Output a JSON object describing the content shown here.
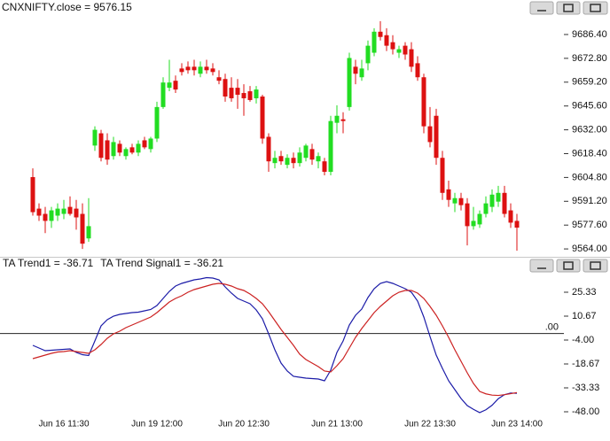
{
  "chart_data": [
    {
      "type": "candlestick",
      "title": "CNXNIFTY.close = 9576.15",
      "title_color": "#3cbf2a",
      "up_color": "#22dd22",
      "down_color": "#dd1111",
      "open": [
        9605,
        9587,
        9584,
        9580,
        9583,
        9584,
        9588,
        9587,
        9584,
        9570,
        9623,
        9630,
        9626,
        9617,
        9624,
        9617,
        9622,
        9619,
        9626,
        9621,
        9627,
        9645,
        9656,
        9660,
        9667,
        9668,
        9668,
        9664,
        9668,
        9667,
        9662,
        9661,
        9656,
        9656,
        9653,
        9654,
        9650,
        9651,
        9628,
        9613,
        9617,
        9612,
        9616,
        9613,
        9616,
        9621,
        9614,
        9614,
        9608,
        9636,
        9638,
        9645,
        9668,
        9662,
        9670,
        9676,
        9688,
        9686,
        9682,
        9676,
        9680,
        9678,
        9670,
        9662,
        9634,
        9640,
        9616,
        9598,
        9590,
        9593,
        9590,
        9577,
        9578,
        9584,
        9588,
        9591,
        9596,
        9586,
        9580
      ],
      "high": [
        9610,
        9590,
        9588,
        9588,
        9590,
        9592,
        9594,
        9592,
        9590,
        9593,
        9634,
        9632,
        9630,
        9628,
        9626,
        9622,
        9624,
        9626,
        9628,
        9628,
        9648,
        9662,
        9672,
        9663,
        9670,
        9671,
        9672,
        9671,
        9672,
        9670,
        9666,
        9664,
        9662,
        9661,
        9658,
        9657,
        9657,
        9652,
        9630,
        9620,
        9620,
        9618,
        9619,
        9622,
        9624,
        9624,
        9619,
        9616,
        9640,
        9646,
        9642,
        9676,
        9672,
        9672,
        9683,
        9690,
        9694,
        9690,
        9686,
        9680,
        9682,
        9682,
        9674,
        9664,
        9645,
        9644,
        9620,
        9603,
        9596,
        9596,
        9593,
        9588,
        9586,
        9594,
        9598,
        9600,
        9600,
        9590,
        9584
      ],
      "low": [
        9583,
        9580,
        9573,
        9576,
        9580,
        9581,
        9583,
        9575,
        9564,
        9568,
        9620,
        9614,
        9612,
        9615,
        9617,
        9615,
        9618,
        9617,
        9621,
        9619,
        9625,
        9644,
        9654,
        9653,
        9663,
        9664,
        9663,
        9662,
        9664,
        9663,
        9658,
        9648,
        9648,
        9644,
        9640,
        9648,
        9647,
        9624,
        9608,
        9610,
        9612,
        9610,
        9610,
        9611,
        9614,
        9612,
        9610,
        9606,
        9606,
        9630,
        9630,
        9643,
        9658,
        9660,
        9666,
        9674,
        9683,
        9677,
        9675,
        9673,
        9672,
        9665,
        9660,
        9630,
        9622,
        9612,
        9592,
        9588,
        9585,
        9586,
        9566,
        9575,
        9576,
        9582,
        9585,
        9588,
        9582,
        9576,
        9563
      ],
      "close": [
        9585,
        9583,
        9580,
        9586,
        9587,
        9587,
        9584,
        9582,
        9567,
        9577,
        9632,
        9616,
        9615,
        9625,
        9619,
        9621,
        9619,
        9624,
        9622,
        9627,
        9645,
        9659,
        9659,
        9655,
        9665,
        9666,
        9666,
        9668,
        9666,
        9665,
        9660,
        9651,
        9650,
        9652,
        9650,
        9649,
        9655,
        9627,
        9614,
        9616,
        9614,
        9616,
        9613,
        9619,
        9623,
        9615,
        9617,
        9608,
        9637,
        9640,
        9637,
        9673,
        9664,
        9667,
        9680,
        9688,
        9685,
        9680,
        9678,
        9678,
        9675,
        9668,
        9662,
        9634,
        9625,
        9616,
        9596,
        9592,
        9593,
        9589,
        9577,
        9580,
        9584,
        9590,
        9595,
        9596,
        9584,
        9579,
        9576.15
      ],
      "ylim": [
        9559.5,
        9697
      ],
      "yticks": [
        {
          "value": 9686.4,
          "label": "9686.40"
        },
        {
          "value": 9672.8,
          "label": "9672.80"
        },
        {
          "value": 9659.2,
          "label": "9659.20"
        },
        {
          "value": 9645.6,
          "label": "9645.60"
        },
        {
          "value": 9632,
          "label": "9632.00"
        },
        {
          "value": 9618.4,
          "label": "9618.40"
        },
        {
          "value": 9604.8,
          "label": "9604.80"
        },
        {
          "value": 9591.2,
          "label": "9591.20"
        },
        {
          "value": 9577.6,
          "label": "9577.60"
        },
        {
          "value": 9564,
          "label": "9564.00"
        }
      ]
    },
    {
      "type": "line",
      "categories": [
        null,
        null,
        null,
        null,
        null,
        "Jun 16 11:30",
        null,
        null,
        null,
        null,
        null,
        null,
        null,
        null,
        null,
        null,
        null,
        null,
        null,
        null,
        "Jun 19 12:00",
        null,
        null,
        null,
        null,
        null,
        null,
        null,
        null,
        null,
        null,
        null,
        null,
        null,
        "Jun 20 12:30",
        null,
        null,
        null,
        null,
        null,
        null,
        null,
        null,
        null,
        null,
        null,
        null,
        null,
        null,
        "Jun 21 13:00",
        null,
        null,
        null,
        null,
        null,
        null,
        null,
        null,
        null,
        null,
        null,
        null,
        null,
        null,
        "Jun 22 13:30",
        null,
        null,
        null,
        null,
        null,
        null,
        null,
        null,
        null,
        null,
        null,
        null,
        null,
        "Jun 23 14:00"
      ],
      "series": [
        {
          "name": "TA Trend1 = -36.71",
          "color": "#1c1ca8",
          "values": [
            -7.26,
            -8.89,
            -10.52,
            -10.25,
            -9.98,
            -9.71,
            -9.43,
            -11.61,
            -12.97,
            -13.51,
            -4.55,
            4.69,
            8.49,
            10.66,
            11.75,
            12.29,
            12.84,
            13.11,
            13.92,
            14.74,
            17.18,
            21.53,
            25.87,
            29.13,
            30.76,
            31.85,
            32.93,
            33.48,
            34.29,
            34.02,
            32.93,
            28.59,
            24.79,
            21.53,
            19.9,
            18.27,
            14.47,
            9.03,
            -0.2,
            -9.98,
            -18.13,
            -23.01,
            -26.27,
            -26.82,
            -27.36,
            -27.63,
            -27.9,
            -28.99,
            -22.47,
            -11.61,
            -4.55,
            5.23,
            11.21,
            15.01,
            22.07,
            27.5,
            30.76,
            31.85,
            30.76,
            29.13,
            27.5,
            25.33,
            19.9,
            10.12,
            -1.83,
            -13.24,
            -21.39,
            -28.99,
            -34.42,
            -39.85,
            -44.2,
            -46.5,
            -48.5,
            -46.8,
            -44,
            -40,
            -37.5,
            -36.5,
            -36.71
          ]
        },
        {
          "name": "TA Trend Signal1 = -36.21",
          "color": "#cc2222",
          "values": [
            -15.41,
            -14.32,
            -13.24,
            -12.15,
            -11.34,
            -11.06,
            -10.52,
            -11.06,
            -11.61,
            -12.15,
            -9.98,
            -6.72,
            -2.92,
            -0.2,
            1.43,
            3.6,
            5.23,
            6.86,
            8.49,
            10.12,
            12.84,
            16.1,
            19.35,
            21.53,
            23.16,
            25.33,
            26.96,
            28.05,
            29.13,
            30.22,
            30.76,
            30.22,
            29.13,
            27.5,
            26.42,
            24.24,
            21.53,
            18.27,
            13.38,
            7.95,
            2.52,
            -2.37,
            -7.26,
            -12.69,
            -15.95,
            -18.13,
            -20.3,
            -23.01,
            -23.56,
            -19.76,
            -15.41,
            -8.89,
            -2.37,
            3.06,
            7.95,
            12.84,
            16.64,
            19.9,
            23.16,
            25.33,
            26.42,
            26.42,
            24.79,
            21.53,
            16.64,
            11.21,
            4.69,
            -2.37,
            -9.98,
            -17.04,
            -24.1,
            -30.62,
            -35.51,
            -37,
            -37.8,
            -38,
            -37.5,
            -36.9,
            -36.21
          ]
        }
      ],
      "reference_line": {
        "value": 0,
        "label": ".00",
        "color": "#222222"
      },
      "ylim": [
        -50.72,
        37.28
      ],
      "yticks": [
        25.33,
        10.67,
        {
          "value": -4,
          "label": "-4.00"
        },
        -18.67,
        -33.33,
        {
          "value": -48,
          "label": "-48.00"
        }
      ]
    }
  ]
}
